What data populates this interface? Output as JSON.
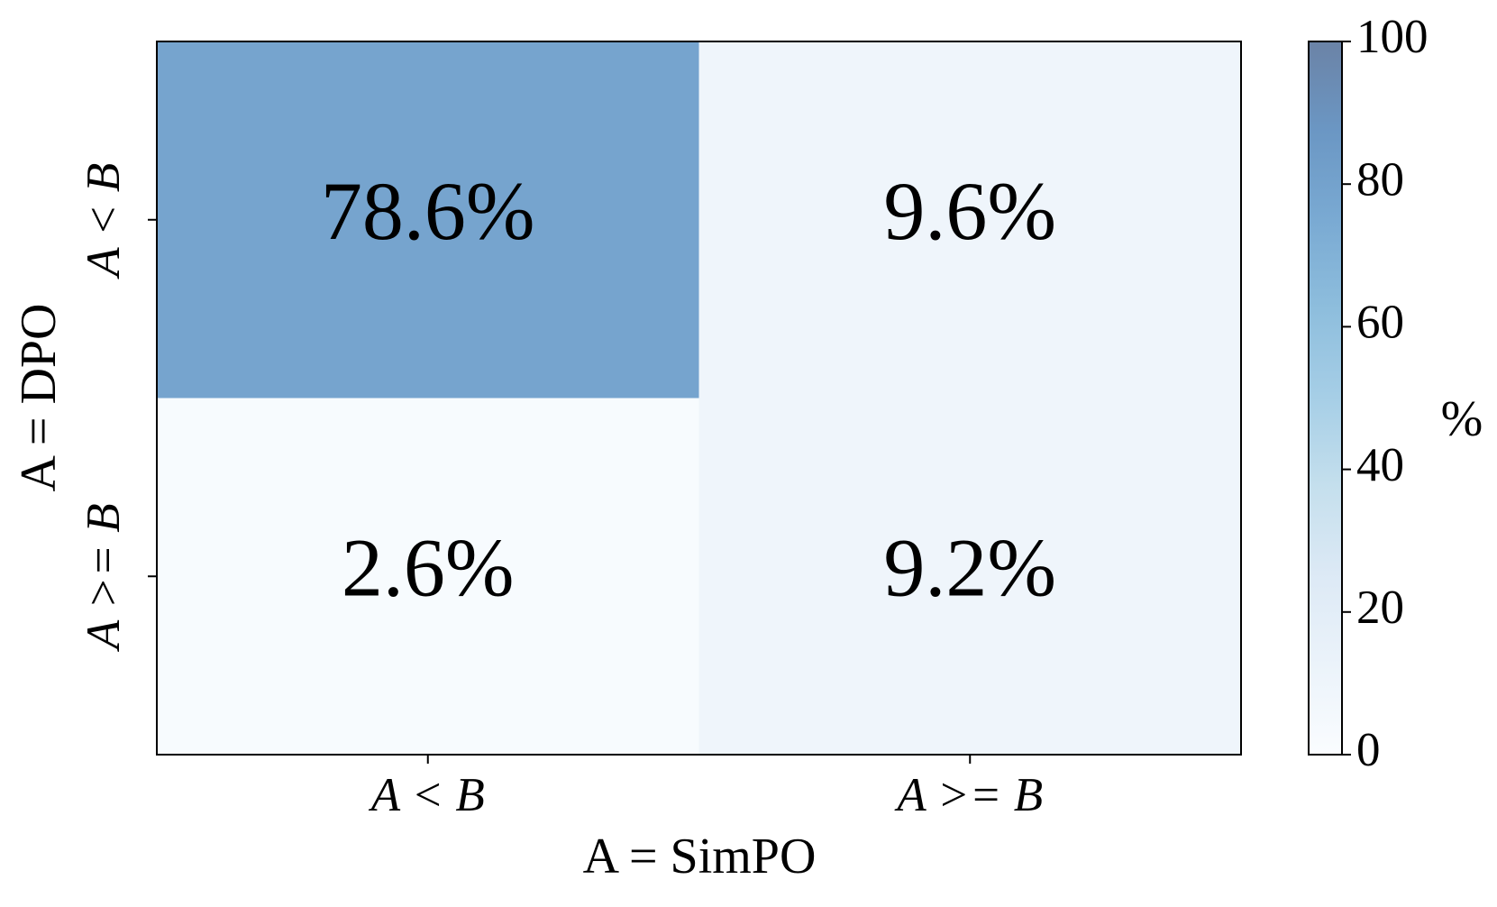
{
  "chart_data": {
    "type": "heatmap",
    "x_label": "A = SimPO",
    "y_label": "A = DPO",
    "x_categories": [
      "A < B",
      "A >= B"
    ],
    "y_categories": [
      "A < B",
      "A >= B"
    ],
    "values": [
      [
        78.6,
        9.6
      ],
      [
        2.6,
        9.2
      ]
    ],
    "value_labels": [
      [
        "78.6%",
        "9.6%"
      ],
      [
        "2.6%",
        "9.2%"
      ]
    ],
    "colormap": "Blues",
    "colorbar_label": "%",
    "clim": [
      0,
      100
    ],
    "cticks": [
      0,
      20,
      40,
      60,
      80,
      100
    ]
  }
}
